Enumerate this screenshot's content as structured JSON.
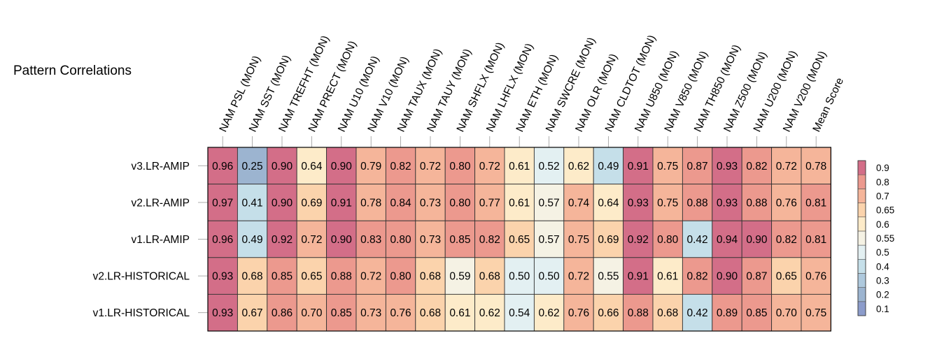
{
  "chart_data": {
    "type": "heatmap",
    "title": "Pattern Correlations",
    "columns": [
      "NAM PSL (MON)",
      "NAM SST (MON)",
      "NAM TREFHT (MON)",
      "NAM PRECT (MON)",
      "NAM U10 (MON)",
      "NAM V10 (MON)",
      "NAM TAUX (MON)",
      "NAM TAUY (MON)",
      "NAM SHFLX (MON)",
      "NAM LHFLX (MON)",
      "NAM ETH (MON)",
      "NAM SWCRE (MON)",
      "NAM OLR (MON)",
      "NAM CLDTOT (MON)",
      "NAM U850 (MON)",
      "NAM V850 (MON)",
      "NAM TH850 (MON)",
      "NAM Z500 (MON)",
      "NAM U200 (MON)",
      "NAM V200 (MON)",
      "Mean Score"
    ],
    "rows": [
      "v3.LR-AMIP",
      "v2.LR-AMIP",
      "v1.LR-AMIP",
      "v2.LR-HISTORICAL",
      "v1.LR-HISTORICAL"
    ],
    "values": [
      [
        0.96,
        0.25,
        0.9,
        0.64,
        0.9,
        0.79,
        0.82,
        0.72,
        0.8,
        0.72,
        0.61,
        0.52,
        0.62,
        0.49,
        0.91,
        0.75,
        0.87,
        0.93,
        0.82,
        0.72,
        0.78
      ],
      [
        0.97,
        0.41,
        0.9,
        0.69,
        0.91,
        0.78,
        0.84,
        0.73,
        0.8,
        0.77,
        0.61,
        0.57,
        0.74,
        0.64,
        0.93,
        0.75,
        0.88,
        0.93,
        0.88,
        0.76,
        0.81
      ],
      [
        0.96,
        0.49,
        0.92,
        0.72,
        0.9,
        0.83,
        0.8,
        0.73,
        0.85,
        0.82,
        0.65,
        0.57,
        0.75,
        0.69,
        0.92,
        0.8,
        0.42,
        0.94,
        0.9,
        0.82,
        0.81
      ],
      [
        0.93,
        0.68,
        0.85,
        0.65,
        0.88,
        0.72,
        0.8,
        0.68,
        0.59,
        0.68,
        0.5,
        0.5,
        0.72,
        0.55,
        0.91,
        0.61,
        0.82,
        0.9,
        0.87,
        0.65,
        0.76
      ],
      [
        0.93,
        0.67,
        0.86,
        0.7,
        0.85,
        0.73,
        0.76,
        0.68,
        0.61,
        0.62,
        0.54,
        0.62,
        0.76,
        0.66,
        0.88,
        0.68,
        0.42,
        0.89,
        0.85,
        0.7,
        0.75
      ]
    ],
    "colorbar": {
      "levels": [
        0.1,
        0.2,
        0.3,
        0.4,
        0.5,
        0.55,
        0.6,
        0.65,
        0.7,
        0.8,
        0.9
      ],
      "labels": [
        "0.1",
        "0.2",
        "0.3",
        "0.4",
        "0.5",
        "0.55",
        "0.6",
        "0.65",
        "0.7",
        "0.8",
        "0.9"
      ],
      "colors": [
        "#8c9ccb",
        "#9cb4d0",
        "#aec9dd",
        "#c5dfe9",
        "#e3f0f2",
        "#f5f2e4",
        "#fdebc9",
        "#fbd3ac",
        "#f5b59a",
        "#ec998e",
        "#d36e88"
      ]
    }
  }
}
